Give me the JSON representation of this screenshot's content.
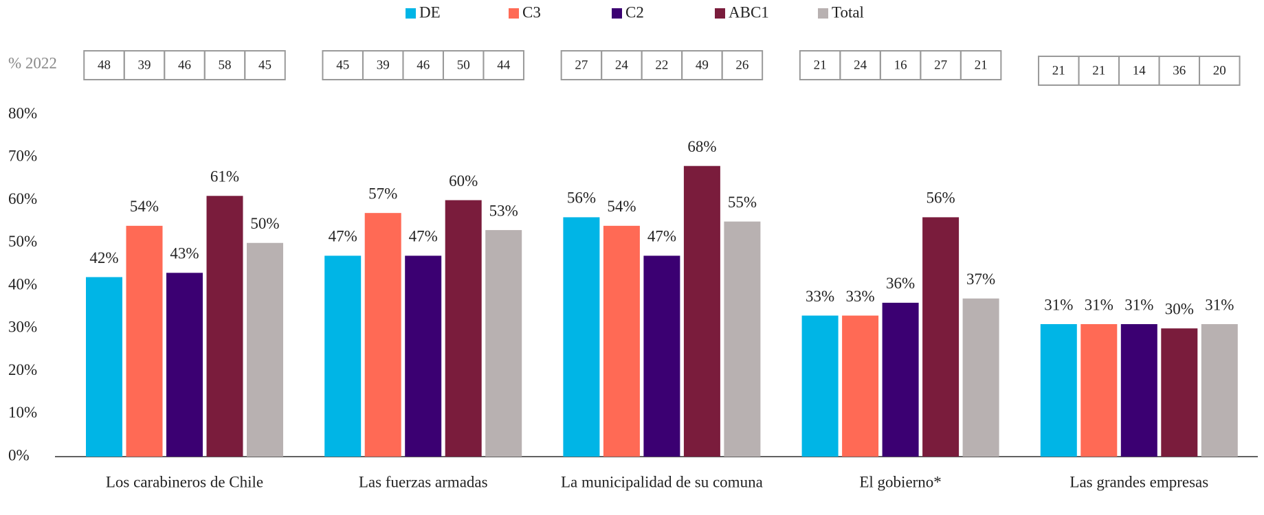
{
  "chart_data": {
    "type": "bar",
    "categories": [
      "Los carabineros de Chile",
      "Las fuerzas armadas",
      "La municipalidad de su comuna",
      "El gobierno*",
      "Las grandes empresas"
    ],
    "series": [
      {
        "name": "DE",
        "color": "#00b5e6",
        "values": [
          42,
          47,
          56,
          33,
          31
        ],
        "value_labels": [
          "42%",
          "47%",
          "56%",
          "33%",
          "31%"
        ]
      },
      {
        "name": "C3",
        "color": "#ff6a55",
        "values": [
          54,
          57,
          54,
          33,
          31
        ],
        "value_labels": [
          "54%",
          "57%",
          "54%",
          "33%",
          "31%"
        ]
      },
      {
        "name": "C2",
        "color": "#3b0072",
        "values": [
          43,
          47,
          47,
          36,
          31
        ],
        "value_labels": [
          "43%",
          "47%",
          "47%",
          "36%",
          "31%"
        ]
      },
      {
        "name": "ABC1",
        "color": "#7a1c3c",
        "values": [
          61,
          60,
          68,
          56,
          30
        ],
        "value_labels": [
          "61%",
          "60%",
          "68%",
          "56%",
          "30%"
        ]
      },
      {
        "name": "Total",
        "color": "#b8b1b1",
        "values": [
          50,
          53,
          55,
          37,
          31
        ],
        "value_labels": [
          "50%",
          "53%",
          "55%",
          "37%",
          "31%"
        ]
      }
    ],
    "ylim": [
      0,
      80
    ],
    "yticks": [
      {
        "value": 0,
        "label": "0%"
      },
      {
        "value": 10,
        "label": "10%"
      },
      {
        "value": 20,
        "label": "20%"
      },
      {
        "value": 30,
        "label": "30%"
      },
      {
        "value": 40,
        "label": "40%"
      },
      {
        "value": 50,
        "label": "50%"
      },
      {
        "value": 60,
        "label": "60%"
      },
      {
        "value": 70,
        "label": "70%"
      },
      {
        "value": 80,
        "label": "80%"
      }
    ],
    "legend": "top",
    "reference_table": {
      "label": "% 2022",
      "rows": [
        [
          48,
          39,
          46,
          58,
          45
        ],
        [
          45,
          39,
          46,
          50,
          44
        ],
        [
          27,
          24,
          22,
          49,
          26
        ],
        [
          21,
          24,
          16,
          27,
          21
        ],
        [
          21,
          21,
          14,
          36,
          20
        ]
      ]
    }
  }
}
